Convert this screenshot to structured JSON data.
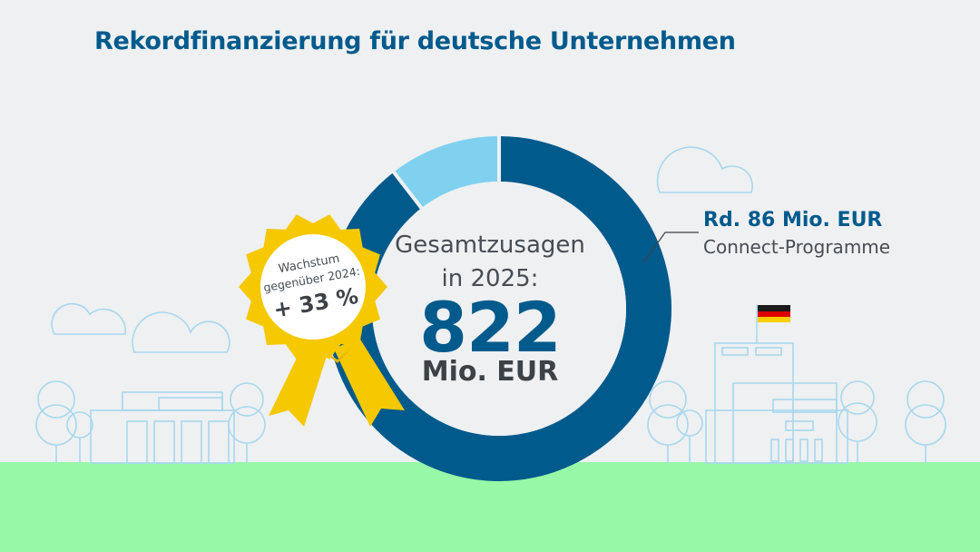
{
  "title": "Rekordfinanzierung für deutsche Unternehmen",
  "center": {
    "line1": "Gesamtzusagen",
    "line2": "in 2025:",
    "value": "822",
    "unit": "Mio. EUR"
  },
  "badge": {
    "line1": "Wachstum",
    "line2": "gegenüber 2024:",
    "line3": "+ 33 %"
  },
  "callout": {
    "value": "Rd. 86 Mio. EUR",
    "label": "Connect-Programme"
  },
  "colors": {
    "title": "#005a8c",
    "ring_main": "#005a8c",
    "ring_highlight": "#7fd1ef",
    "badge": "#f5c800",
    "ground": "#97f8a7",
    "outline": "#a9d8ee"
  },
  "chart_data": {
    "type": "pie",
    "donut": true,
    "total": 822,
    "unit": "Mio. EUR",
    "slices": [
      {
        "label": "Connect-Programme",
        "value": 86,
        "color": "#7fd1ef"
      },
      {
        "label": "",
        "value": 736,
        "color": "#005a8c"
      }
    ]
  }
}
